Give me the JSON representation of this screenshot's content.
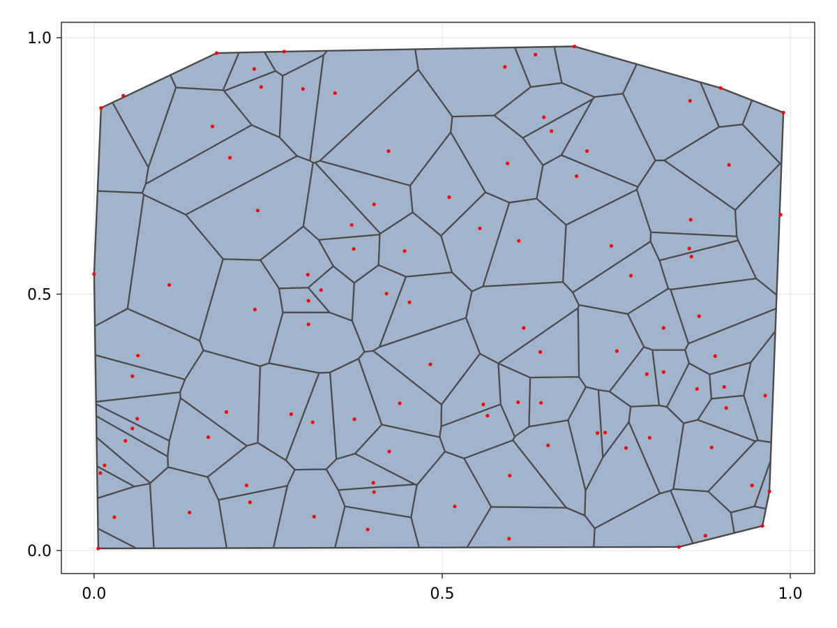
{
  "chart_data": {
    "type": "scatter",
    "subtype": "voronoi",
    "title": "",
    "xlabel": "",
    "ylabel": "",
    "xlim": [
      -0.047,
      1.035
    ],
    "ylim": [
      -0.045,
      1.03
    ],
    "grid": true,
    "legend": "none",
    "x_ticks": [
      0.0,
      0.5,
      1.0
    ],
    "x_tick_labels": [
      "0.0",
      "0.5",
      "1.0"
    ],
    "y_ticks": [
      0.0,
      0.5,
      1.0
    ],
    "y_tick_labels": [
      "0.0",
      "0.5",
      "1.0"
    ],
    "colors": {
      "cell_fill": "#a0b4cb",
      "cell_edge": "#4a4a4a",
      "site": "#ff0000",
      "grid": "#e6e6e6"
    },
    "hull": [
      [
        0.006,
        0.004
      ],
      [
        0.84,
        0.007
      ],
      [
        0.96,
        0.048
      ],
      [
        0.97,
        0.115
      ],
      [
        0.99,
        0.854
      ],
      [
        0.9,
        0.902
      ],
      [
        0.69,
        0.983
      ],
      [
        0.273,
        0.973
      ],
      [
        0.176,
        0.97
      ],
      [
        0.01,
        0.863
      ],
      [
        0.0,
        0.539
      ]
    ],
    "sites": [
      [
        0.006,
        0.004
      ],
      [
        0.84,
        0.007
      ],
      [
        0.96,
        0.048
      ],
      [
        0.97,
        0.115
      ],
      [
        0.99,
        0.854
      ],
      [
        0.9,
        0.902
      ],
      [
        0.69,
        0.983
      ],
      [
        0.273,
        0.973
      ],
      [
        0.176,
        0.97
      ],
      [
        0.01,
        0.863
      ],
      [
        0.0,
        0.539
      ],
      [
        0.042,
        0.887
      ],
      [
        0.23,
        0.939
      ],
      [
        0.24,
        0.904
      ],
      [
        0.3,
        0.9
      ],
      [
        0.346,
        0.892
      ],
      [
        0.59,
        0.943
      ],
      [
        0.634,
        0.967
      ],
      [
        0.17,
        0.827
      ],
      [
        0.195,
        0.766
      ],
      [
        0.423,
        0.779
      ],
      [
        0.646,
        0.845
      ],
      [
        0.657,
        0.818
      ],
      [
        0.856,
        0.877
      ],
      [
        0.594,
        0.755
      ],
      [
        0.708,
        0.779
      ],
      [
        0.693,
        0.73
      ],
      [
        0.912,
        0.752
      ],
      [
        0.235,
        0.663
      ],
      [
        0.402,
        0.675
      ],
      [
        0.51,
        0.689
      ],
      [
        0.37,
        0.635
      ],
      [
        0.554,
        0.628
      ],
      [
        0.61,
        0.604
      ],
      [
        0.373,
        0.588
      ],
      [
        0.446,
        0.584
      ],
      [
        0.743,
        0.594
      ],
      [
        0.857,
        0.645
      ],
      [
        0.855,
        0.589
      ],
      [
        0.858,
        0.573
      ],
      [
        0.986,
        0.655
      ],
      [
        0.307,
        0.538
      ],
      [
        0.326,
        0.508
      ],
      [
        0.108,
        0.518
      ],
      [
        0.231,
        0.47
      ],
      [
        0.308,
        0.487
      ],
      [
        0.42,
        0.501
      ],
      [
        0.453,
        0.484
      ],
      [
        0.308,
        0.441
      ],
      [
        0.771,
        0.536
      ],
      [
        0.617,
        0.434
      ],
      [
        0.869,
        0.457
      ],
      [
        0.818,
        0.434
      ],
      [
        0.063,
        0.38
      ],
      [
        0.055,
        0.34
      ],
      [
        0.483,
        0.363
      ],
      [
        0.641,
        0.387
      ],
      [
        0.751,
        0.389
      ],
      [
        0.892,
        0.379
      ],
      [
        0.794,
        0.344
      ],
      [
        0.818,
        0.348
      ],
      [
        0.866,
        0.315
      ],
      [
        0.905,
        0.319
      ],
      [
        0.964,
        0.302
      ],
      [
        0.19,
        0.27
      ],
      [
        0.283,
        0.266
      ],
      [
        0.314,
        0.25
      ],
      [
        0.374,
        0.256
      ],
      [
        0.439,
        0.287
      ],
      [
        0.559,
        0.285
      ],
      [
        0.565,
        0.263
      ],
      [
        0.609,
        0.289
      ],
      [
        0.642,
        0.288
      ],
      [
        0.062,
        0.257
      ],
      [
        0.055,
        0.238
      ],
      [
        0.164,
        0.221
      ],
      [
        0.045,
        0.214
      ],
      [
        0.723,
        0.229
      ],
      [
        0.734,
        0.23
      ],
      [
        0.798,
        0.22
      ],
      [
        0.652,
        0.205
      ],
      [
        0.764,
        0.2
      ],
      [
        0.887,
        0.201
      ],
      [
        0.908,
        0.278
      ],
      [
        0.015,
        0.166
      ],
      [
        0.009,
        0.151
      ],
      [
        0.424,
        0.193
      ],
      [
        0.401,
        0.132
      ],
      [
        0.402,
        0.114
      ],
      [
        0.219,
        0.127
      ],
      [
        0.224,
        0.094
      ],
      [
        0.597,
        0.146
      ],
      [
        0.518,
        0.086
      ],
      [
        0.945,
        0.127
      ],
      [
        0.029,
        0.065
      ],
      [
        0.137,
        0.074
      ],
      [
        0.316,
        0.066
      ],
      [
        0.393,
        0.041
      ],
      [
        0.596,
        0.023
      ],
      [
        0.878,
        0.029
      ]
    ]
  }
}
